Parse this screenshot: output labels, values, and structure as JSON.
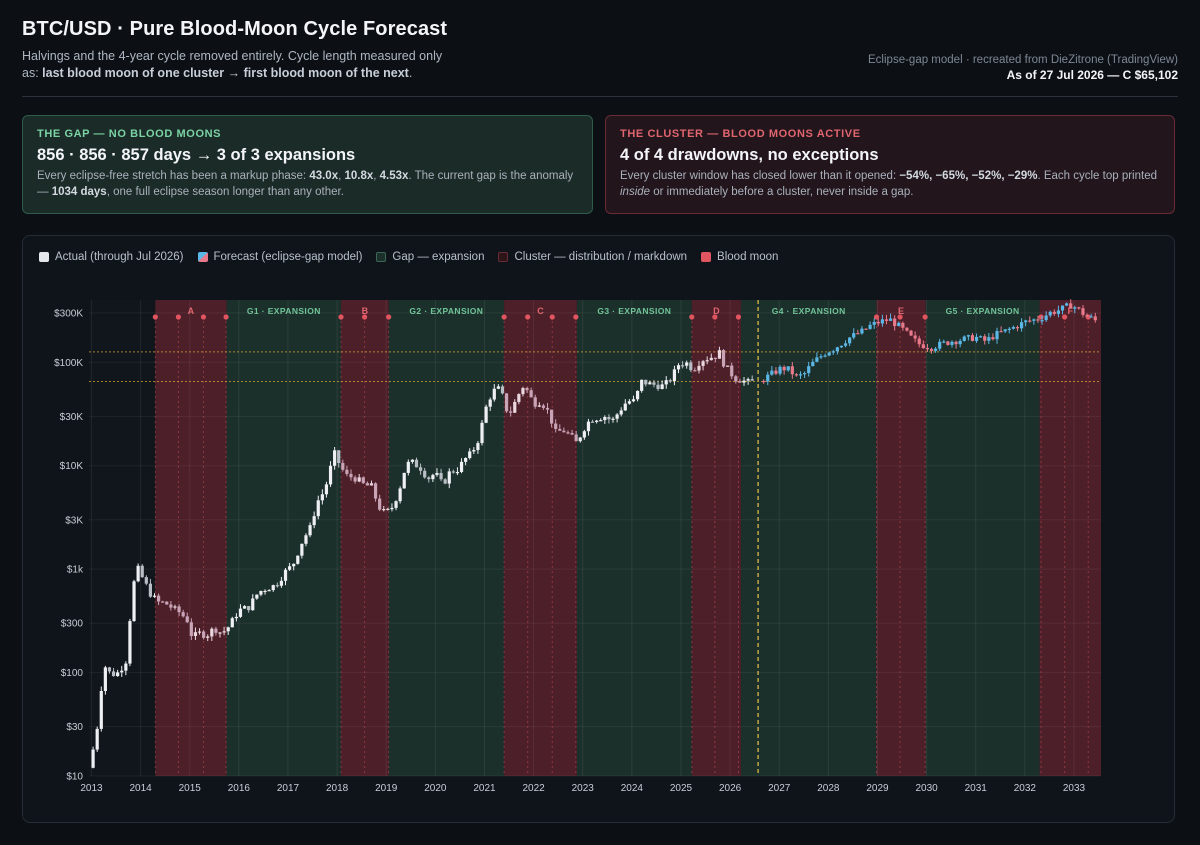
{
  "header": {
    "title": "BTC/USD · Pure Blood-Moon Cycle Forecast",
    "subtitle_text": "Halvings and the 4-year cycle removed entirely. Cycle length measured only as:",
    "subtitle_bold": "last blood moon of one cluster → first blood moon of the next",
    "subtitle_end": ".",
    "credit": "Eclipse-gap model · recreated from DieZitrone (TradingView)",
    "as_of": "As of 27 Jul 2026 — C $65,102"
  },
  "cards": {
    "gap": {
      "kicker": "THE GAP — NO BLOOD MOONS",
      "headline": "856 · 856 · 857 days → 3 of 3 expansions",
      "body_1": "Every eclipse-free stretch has been a markup phase: ",
      "mult_1": "43.0x",
      "sep_1": ", ",
      "mult_2": "10.8x",
      "sep_2": ", ",
      "mult_3": "4.53x",
      "body_2": ". The current gap is the anomaly — ",
      "days": "1034 days",
      "body_3": ", one full eclipse season longer than any other."
    },
    "cluster": {
      "kicker": "THE CLUSTER — BLOOD MOONS ACTIVE",
      "headline": "4 of 4 drawdowns, no exceptions",
      "body_1": "Every cluster window has closed lower than it opened: ",
      "drawdowns": "−54%, −65%, −52%, −29%",
      "body_2": ". Each cycle top printed ",
      "emph": "inside",
      "body_3": " or immediately before a cluster, never inside a gap."
    }
  },
  "legend": {
    "actual": "Actual (through Jul 2026)",
    "forecast": "Forecast (eclipse-gap model)",
    "gap": "Gap — expansion",
    "cluster": "Cluster — distribution / markdown",
    "blood_moon": "Blood moon"
  },
  "colors": {
    "actual": "#d9dde3",
    "forecast_bull": "#5bb7e6",
    "forecast_bear": "#e8798b",
    "gap_fill": "#1c302b",
    "cluster_fill": "#4d1f29",
    "blood_moon": "#e0555f",
    "now_line": "#e8c24a",
    "level_line": "#d9a43a"
  },
  "chart_data": {
    "type": "candlestick",
    "y_scale": "log",
    "ylim": [
      10,
      400000
    ],
    "x_ticks": [
      "2013",
      "2014",
      "2015",
      "2016",
      "2017",
      "2018",
      "2019",
      "2020",
      "2021",
      "2022",
      "2023",
      "2024",
      "2025",
      "2026",
      "2027",
      "2028",
      "2029",
      "2030",
      "2031",
      "2032",
      "2033"
    ],
    "y_ticks": [
      {
        "value": 10,
        "label": "$10"
      },
      {
        "value": 30,
        "label": "$30"
      },
      {
        "value": 100,
        "label": "$100"
      },
      {
        "value": 300,
        "label": "$300"
      },
      {
        "value": 1000,
        "label": "$1k"
      },
      {
        "value": 3000,
        "label": "$3K"
      },
      {
        "value": 10000,
        "label": "$10K"
      },
      {
        "value": 30000,
        "label": "$30K"
      },
      {
        "value": 100000,
        "label": "$100K"
      },
      {
        "value": 300000,
        "label": "$300K"
      }
    ],
    "clusters": [
      {
        "label": "A",
        "start": 2014.3,
        "end": 2015.75
      },
      {
        "label": "B",
        "start": 2018.08,
        "end": 2019.05
      },
      {
        "label": "C",
        "start": 2021.4,
        "end": 2022.88
      },
      {
        "label": "D",
        "start": 2025.22,
        "end": 2026.22
      },
      {
        "label": "E",
        "start": 2028.98,
        "end": 2029.98
      },
      {
        "label": "F",
        "start": 2032.3,
        "end": 2033.55
      }
    ],
    "gaps": [
      {
        "label": "G1 · EXPANSION",
        "start": 2015.75,
        "end": 2018.08
      },
      {
        "label": "G2 · EXPANSION",
        "start": 2019.05,
        "end": 2021.4
      },
      {
        "label": "G3 · EXPANSION",
        "start": 2022.88,
        "end": 2025.22
      },
      {
        "label": "G4 · EXPANSION",
        "start": 2026.22,
        "end": 2028.98
      },
      {
        "label": "G5 · EXPANSION",
        "start": 2029.98,
        "end": 2032.3
      }
    ],
    "blood_moons": [
      2014.3,
      2014.77,
      2015.28,
      2015.74,
      2018.08,
      2018.56,
      2019.05,
      2021.4,
      2021.88,
      2022.38,
      2022.86,
      2025.22,
      2025.69,
      2026.17,
      2028.98,
      2029.46,
      2029.97,
      2032.33,
      2032.81,
      2033.29
    ],
    "now": 2026.57,
    "levels": [
      126000,
      65102
    ],
    "actual_path": [
      [
        2012.95,
        12
      ],
      [
        2013.1,
        25
      ],
      [
        2013.25,
        120
      ],
      [
        2013.4,
        95
      ],
      [
        2013.55,
        100
      ],
      [
        2013.7,
        130
      ],
      [
        2013.85,
        700
      ],
      [
        2013.95,
        1000
      ],
      [
        2014.05,
        800
      ],
      [
        2014.2,
        580
      ],
      [
        2014.35,
        480
      ],
      [
        2014.5,
        470
      ],
      [
        2014.65,
        420
      ],
      [
        2014.8,
        380
      ],
      [
        2014.95,
        320
      ],
      [
        2015.05,
        220
      ],
      [
        2015.2,
        240
      ],
      [
        2015.35,
        230
      ],
      [
        2015.5,
        270
      ],
      [
        2015.65,
        240
      ],
      [
        2015.8,
        280
      ],
      [
        2016.0,
        400
      ],
      [
        2016.2,
        430
      ],
      [
        2016.4,
        600
      ],
      [
        2016.55,
        650
      ],
      [
        2016.75,
        700
      ],
      [
        2016.95,
        950
      ],
      [
        2017.1,
        1100
      ],
      [
        2017.3,
        1900
      ],
      [
        2017.45,
        2500
      ],
      [
        2017.6,
        4500
      ],
      [
        2017.75,
        5800
      ],
      [
        2017.9,
        11000
      ],
      [
        2017.97,
        14000
      ],
      [
        2018.05,
        10000
      ],
      [
        2018.2,
        8000
      ],
      [
        2018.4,
        7500
      ],
      [
        2018.55,
        6500
      ],
      [
        2018.7,
        6300
      ],
      [
        2018.85,
        4000
      ],
      [
        2018.97,
        3500
      ],
      [
        2019.1,
        3800
      ],
      [
        2019.25,
        5500
      ],
      [
        2019.4,
        10000
      ],
      [
        2019.5,
        11000
      ],
      [
        2019.7,
        9500
      ],
      [
        2019.85,
        7500
      ],
      [
        2020.0,
        8500
      ],
      [
        2020.15,
        6500
      ],
      [
        2020.3,
        8800
      ],
      [
        2020.45,
        9200
      ],
      [
        2020.6,
        11500
      ],
      [
        2020.75,
        13500
      ],
      [
        2020.9,
        19000
      ],
      [
        2021.0,
        33000
      ],
      [
        2021.1,
        45000
      ],
      [
        2021.25,
        58000
      ],
      [
        2021.35,
        50000
      ],
      [
        2021.45,
        35000
      ],
      [
        2021.55,
        33000
      ],
      [
        2021.65,
        45000
      ],
      [
        2021.8,
        60000
      ],
      [
        2021.9,
        50000
      ],
      [
        2022.0,
        40000
      ],
      [
        2022.15,
        42000
      ],
      [
        2022.3,
        33000
      ],
      [
        2022.45,
        21000
      ],
      [
        2022.6,
        22000
      ],
      [
        2022.75,
        19500
      ],
      [
        2022.88,
        16500
      ],
      [
        2023.0,
        22000
      ],
      [
        2023.15,
        28000
      ],
      [
        2023.3,
        29000
      ],
      [
        2023.45,
        30000
      ],
      [
        2023.6,
        27000
      ],
      [
        2023.75,
        34000
      ],
      [
        2023.9,
        42000
      ],
      [
        2024.05,
        42000
      ],
      [
        2024.2,
        65000
      ],
      [
        2024.35,
        62000
      ],
      [
        2024.5,
        60000
      ],
      [
        2024.65,
        59000
      ],
      [
        2024.8,
        70000
      ],
      [
        2024.95,
        95000
      ],
      [
        2025.1,
        100000
      ],
      [
        2025.25,
        85000
      ],
      [
        2025.4,
        105000
      ],
      [
        2025.55,
        110000
      ],
      [
        2025.7,
        115000
      ],
      [
        2025.78,
        125000
      ],
      [
        2025.88,
        95000
      ],
      [
        2026.0,
        80000
      ],
      [
        2026.1,
        70000
      ],
      [
        2026.2,
        68000
      ],
      [
        2026.35,
        64000
      ],
      [
        2026.5,
        65102
      ]
    ],
    "forecast_path": [
      [
        2026.6,
        66000
      ],
      [
        2026.75,
        72000
      ],
      [
        2026.9,
        80000
      ],
      [
        2027.05,
        88000
      ],
      [
        2027.2,
        85000
      ],
      [
        2027.35,
        72000
      ],
      [
        2027.5,
        76000
      ],
      [
        2027.65,
        95000
      ],
      [
        2027.8,
        110000
      ],
      [
        2027.95,
        125000
      ],
      [
        2028.1,
        135000
      ],
      [
        2028.25,
        150000
      ],
      [
        2028.4,
        170000
      ],
      [
        2028.55,
        185000
      ],
      [
        2028.7,
        200000
      ],
      [
        2028.85,
        225000
      ],
      [
        2028.98,
        240000
      ],
      [
        2029.1,
        250000
      ],
      [
        2029.25,
        260000
      ],
      [
        2029.4,
        230000
      ],
      [
        2029.55,
        200000
      ],
      [
        2029.7,
        170000
      ],
      [
        2029.85,
        150000
      ],
      [
        2029.97,
        145000
      ],
      [
        2030.1,
        140000
      ],
      [
        2030.3,
        150000
      ],
      [
        2030.5,
        160000
      ],
      [
        2030.7,
        165000
      ],
      [
        2030.85,
        170000
      ],
      [
        2031.0,
        175000
      ],
      [
        2031.2,
        160000
      ],
      [
        2031.4,
        185000
      ],
      [
        2031.6,
        200000
      ],
      [
        2031.8,
        220000
      ],
      [
        2032.0,
        245000
      ],
      [
        2032.15,
        255000
      ],
      [
        2032.3,
        265000
      ],
      [
        2032.5,
        300000
      ],
      [
        2032.7,
        320000
      ],
      [
        2032.85,
        345000
      ],
      [
        2032.95,
        360000
      ],
      [
        2033.1,
        320000
      ],
      [
        2033.25,
        280000
      ],
      [
        2033.4,
        260000
      ],
      [
        2033.5,
        240000
      ]
    ]
  }
}
